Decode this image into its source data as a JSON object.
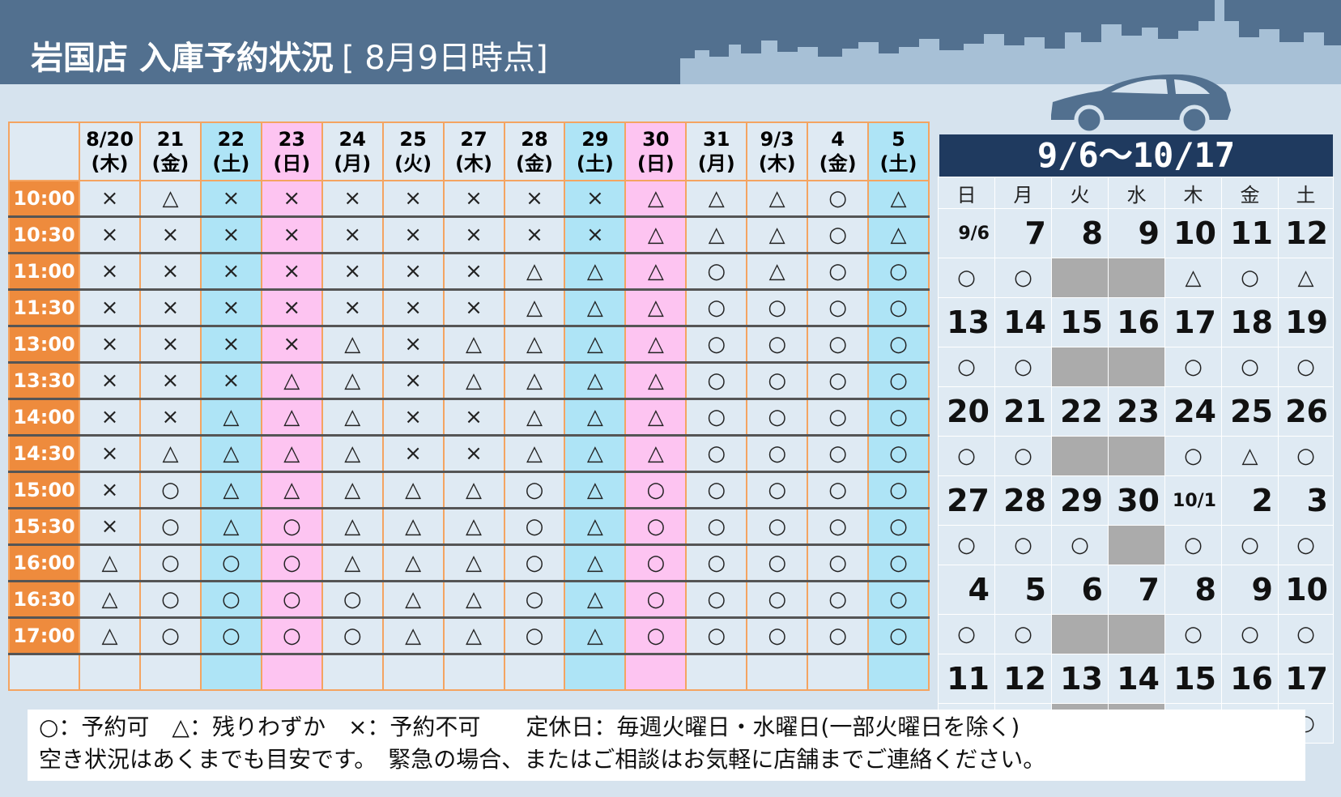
{
  "header": {
    "title": "岩国店 入庫予約状況",
    "as_of": "[ 8月9日時点]"
  },
  "schedule": {
    "dates": [
      {
        "day": "8/20",
        "weekday": "(木)",
        "type": "weekday"
      },
      {
        "day": "21",
        "weekday": "(金)",
        "type": "weekday"
      },
      {
        "day": "22",
        "weekday": "(土)",
        "type": "sat"
      },
      {
        "day": "23",
        "weekday": "(日)",
        "type": "sun"
      },
      {
        "day": "24",
        "weekday": "(月)",
        "type": "weekday"
      },
      {
        "day": "25",
        "weekday": "(火)",
        "type": "weekday"
      },
      {
        "day": "27",
        "weekday": "(木)",
        "type": "weekday"
      },
      {
        "day": "28",
        "weekday": "(金)",
        "type": "weekday"
      },
      {
        "day": "29",
        "weekday": "(土)",
        "type": "sat"
      },
      {
        "day": "30",
        "weekday": "(日)",
        "type": "sun"
      },
      {
        "day": "31",
        "weekday": "(月)",
        "type": "weekday"
      },
      {
        "day": "9/3",
        "weekday": "(木)",
        "type": "weekday"
      },
      {
        "day": "4",
        "weekday": "(金)",
        "type": "weekday"
      },
      {
        "day": "5",
        "weekday": "(土)",
        "type": "sat"
      }
    ],
    "rows": [
      {
        "time": "10:00",
        "slots": [
          "×",
          "△",
          "×",
          "×",
          "×",
          "×",
          "×",
          "×",
          "×",
          "△",
          "△",
          "△",
          "○",
          "△"
        ]
      },
      {
        "time": "10:30",
        "slots": [
          "×",
          "×",
          "×",
          "×",
          "×",
          "×",
          "×",
          "×",
          "×",
          "△",
          "△",
          "△",
          "○",
          "△"
        ]
      },
      {
        "time": "11:00",
        "slots": [
          "×",
          "×",
          "×",
          "×",
          "×",
          "×",
          "×",
          "△",
          "△",
          "△",
          "○",
          "△",
          "○",
          "○"
        ]
      },
      {
        "time": "11:30",
        "slots": [
          "×",
          "×",
          "×",
          "×",
          "×",
          "×",
          "×",
          "△",
          "△",
          "△",
          "○",
          "○",
          "○",
          "○"
        ]
      },
      {
        "time": "13:00",
        "slots": [
          "×",
          "×",
          "×",
          "×",
          "△",
          "×",
          "△",
          "△",
          "△",
          "△",
          "○",
          "○",
          "○",
          "○"
        ]
      },
      {
        "time": "13:30",
        "slots": [
          "×",
          "×",
          "×",
          "△",
          "△",
          "×",
          "△",
          "△",
          "△",
          "△",
          "○",
          "○",
          "○",
          "○"
        ]
      },
      {
        "time": "14:00",
        "slots": [
          "×",
          "×",
          "△",
          "△",
          "△",
          "×",
          "×",
          "△",
          "△",
          "△",
          "○",
          "○",
          "○",
          "○"
        ]
      },
      {
        "time": "14:30",
        "slots": [
          "×",
          "△",
          "△",
          "△",
          "△",
          "×",
          "×",
          "△",
          "△",
          "△",
          "○",
          "○",
          "○",
          "○"
        ]
      },
      {
        "time": "15:00",
        "slots": [
          "×",
          "○",
          "△",
          "△",
          "△",
          "△",
          "△",
          "○",
          "△",
          "○",
          "○",
          "○",
          "○",
          "○"
        ]
      },
      {
        "time": "15:30",
        "slots": [
          "×",
          "○",
          "△",
          "○",
          "△",
          "△",
          "△",
          "○",
          "△",
          "○",
          "○",
          "○",
          "○",
          "○"
        ]
      },
      {
        "time": "16:00",
        "slots": [
          "△",
          "○",
          "○",
          "○",
          "△",
          "△",
          "△",
          "○",
          "△",
          "○",
          "○",
          "○",
          "○",
          "○"
        ]
      },
      {
        "time": "16:30",
        "slots": [
          "△",
          "○",
          "○",
          "○",
          "○",
          "△",
          "△",
          "○",
          "△",
          "○",
          "○",
          "○",
          "○",
          "○"
        ]
      },
      {
        "time": "17:00",
        "slots": [
          "△",
          "○",
          "○",
          "○",
          "○",
          "△",
          "△",
          "○",
          "△",
          "○",
          "○",
          "○",
          "○",
          "○"
        ]
      }
    ]
  },
  "calendar": {
    "title": "9/6～10/17",
    "weekdays": [
      "日",
      "月",
      "火",
      "水",
      "木",
      "金",
      "土"
    ],
    "weeks": [
      {
        "dates": [
          "9/6",
          "7",
          "8",
          "9",
          "10",
          "11",
          "12"
        ],
        "status": [
          "○",
          "○",
          "",
          "",
          "△",
          "○",
          "△"
        ],
        "closed": [
          false,
          false,
          true,
          true,
          false,
          false,
          false
        ],
        "red": [
          true,
          false,
          false,
          false,
          false,
          false,
          false
        ],
        "small": [
          true,
          false,
          false,
          false,
          false,
          false,
          false
        ]
      },
      {
        "dates": [
          "13",
          "14",
          "15",
          "16",
          "17",
          "18",
          "19"
        ],
        "status": [
          "○",
          "○",
          "",
          "",
          "○",
          "○",
          "○"
        ],
        "closed": [
          false,
          false,
          true,
          true,
          false,
          false,
          false
        ],
        "red": [
          true,
          false,
          false,
          false,
          false,
          false,
          false
        ],
        "small": [
          false,
          false,
          false,
          false,
          false,
          false,
          false
        ]
      },
      {
        "dates": [
          "20",
          "21",
          "22",
          "23",
          "24",
          "25",
          "26"
        ],
        "status": [
          "○",
          "○",
          "",
          "",
          "○",
          "△",
          "○"
        ],
        "closed": [
          false,
          false,
          true,
          true,
          false,
          false,
          false
        ],
        "red": [
          true,
          true,
          true,
          false,
          false,
          false,
          false
        ],
        "small": [
          false,
          false,
          false,
          false,
          false,
          false,
          false
        ]
      },
      {
        "dates": [
          "27",
          "28",
          "29",
          "30",
          "10/1",
          "2",
          "3"
        ],
        "status": [
          "○",
          "○",
          "○",
          "",
          "○",
          "○",
          "○"
        ],
        "closed": [
          false,
          false,
          false,
          true,
          false,
          false,
          false
        ],
        "red": [
          true,
          false,
          false,
          false,
          false,
          false,
          false
        ],
        "small": [
          false,
          false,
          false,
          false,
          true,
          false,
          false
        ]
      },
      {
        "dates": [
          "4",
          "5",
          "6",
          "7",
          "8",
          "9",
          "10"
        ],
        "status": [
          "○",
          "○",
          "",
          "",
          "○",
          "○",
          "○"
        ],
        "closed": [
          false,
          false,
          true,
          true,
          false,
          false,
          false
        ],
        "red": [
          true,
          false,
          false,
          false,
          false,
          false,
          false
        ],
        "small": [
          false,
          false,
          false,
          false,
          false,
          false,
          false
        ]
      },
      {
        "dates": [
          "11",
          "12",
          "13",
          "14",
          "15",
          "16",
          "17"
        ],
        "status": [
          "○",
          "○",
          "",
          "",
          "○",
          "○",
          "○"
        ],
        "closed": [
          false,
          false,
          true,
          true,
          false,
          false,
          false
        ],
        "red": [
          true,
          false,
          false,
          false,
          false,
          false,
          false
        ],
        "small": [
          false,
          false,
          false,
          false,
          false,
          false,
          false
        ]
      }
    ]
  },
  "legend": {
    "line1": "○：予約可　△：残りわずか　×：予約不可　　定休日：毎週火曜日・水曜日(一部火曜日を除く)",
    "line2": "空き状況はあくまでも目安です。　緊急の場合、またはご相談はお気軽に店舗までご連絡ください。"
  },
  "colors": {
    "header_bg": "#52708f",
    "time_col": "#ee8b3d",
    "saturday": "#aee4f6",
    "sunday": "#fdc4f1",
    "calendar_title": "#1f3a5f",
    "holiday_red": "#ee3a12",
    "saturday_blue": "#5d97c9",
    "closed_gray": "#ababab"
  }
}
